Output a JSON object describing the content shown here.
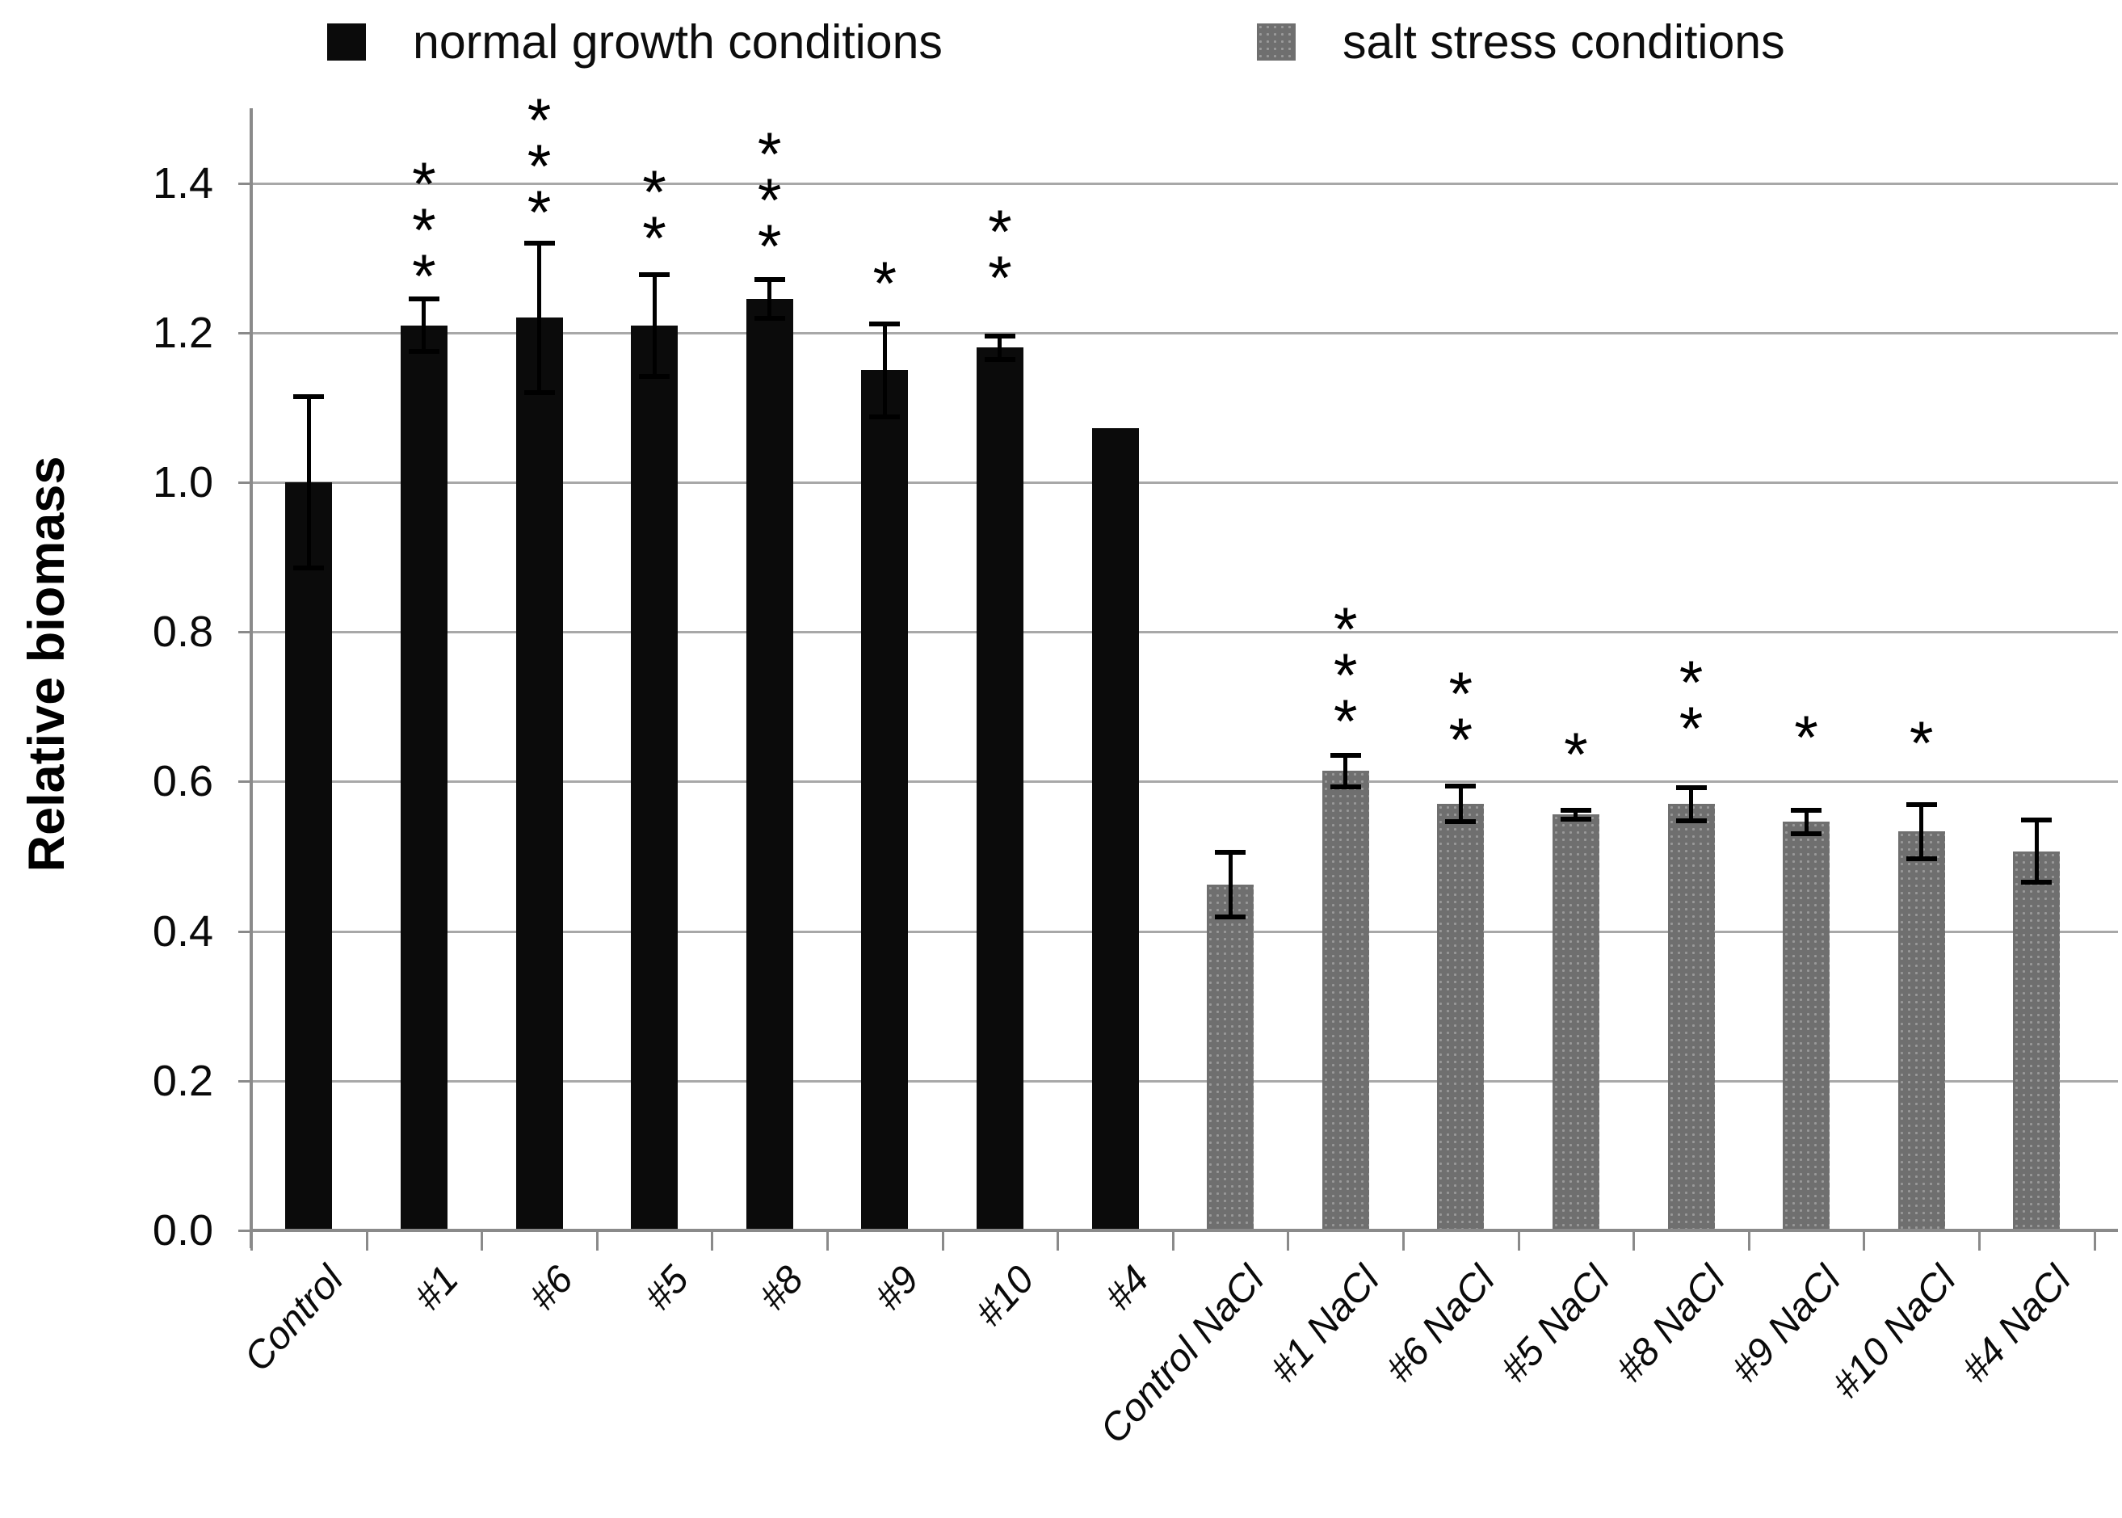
{
  "chart_data": {
    "type": "bar",
    "title": "",
    "xlabel": "",
    "ylabel": "Relative biomass",
    "ylim": [
      0,
      1.5
    ],
    "ytick_step": 0.2,
    "ytick_labels": [
      "0.0",
      "0.2",
      "0.4",
      "0.6",
      "0.8",
      "1.0",
      "1.2",
      "1.4"
    ],
    "grid": "horizontal gray gridlines every 0.2, full plot width",
    "legend_position": "top",
    "legend": [
      {
        "label": "normal growth conditions",
        "group": "normal",
        "color": "#0b0b0b"
      },
      {
        "label": "salt stress conditions",
        "group": "salt",
        "color": "#6f6f6f"
      }
    ],
    "bars": [
      {
        "label": "Control",
        "group": "normal",
        "value": 1.0,
        "error": 0.115,
        "stars": "",
        "stars_y": null
      },
      {
        "label": "#1",
        "group": "normal",
        "value": 1.21,
        "error": 0.035,
        "stars": "***",
        "stars_y": 1.265
      },
      {
        "label": "#6",
        "group": "normal",
        "value": 1.22,
        "error": 0.1,
        "stars": "***",
        "stars_y": 1.35
      },
      {
        "label": "#5",
        "group": "normal",
        "value": 1.21,
        "error": 0.068,
        "stars": "**",
        "stars_y": 1.315
      },
      {
        "label": "#8",
        "group": "normal",
        "value": 1.245,
        "error": 0.026,
        "stars": "***",
        "stars_y": 1.305
      },
      {
        "label": "#9",
        "group": "normal",
        "value": 1.15,
        "error": 0.062,
        "stars": "*",
        "stars_y": 1.255
      },
      {
        "label": "#10",
        "group": "normal",
        "value": 1.18,
        "error": 0.016,
        "stars": "**",
        "stars_y": 1.262
      },
      {
        "label": "#4",
        "group": "normal",
        "value": 1.072,
        "error": null,
        "stars": "",
        "stars_y": null
      },
      {
        "label": "Control NaCl",
        "group": "salt",
        "value": 0.462,
        "error": 0.043,
        "stars": "",
        "stars_y": null
      },
      {
        "label": "#1 NaCl",
        "group": "salt",
        "value": 0.614,
        "error": 0.021,
        "stars": "***",
        "stars_y": 0.67
      },
      {
        "label": "#6 NaCl",
        "group": "salt",
        "value": 0.57,
        "error": 0.024,
        "stars": "**",
        "stars_y": 0.645
      },
      {
        "label": "#5 NaCl",
        "group": "salt",
        "value": 0.556,
        "error": 0.006,
        "stars": "*",
        "stars_y": 0.625
      },
      {
        "label": "#8 NaCl",
        "group": "salt",
        "value": 0.57,
        "error": 0.022,
        "stars": "**",
        "stars_y": 0.66
      },
      {
        "label": "#9 NaCl",
        "group": "salt",
        "value": 0.546,
        "error": 0.016,
        "stars": "*",
        "stars_y": 0.648
      },
      {
        "label": "#10 NaCl",
        "group": "salt",
        "value": 0.533,
        "error": 0.036,
        "stars": "*",
        "stars_y": 0.64
      },
      {
        "label": "#4 NaCl",
        "group": "salt",
        "value": 0.507,
        "error": 0.042,
        "stars": "",
        "stars_y": null
      }
    ],
    "colors": {
      "normal_bar": "#0b0b0b",
      "salt_bar": "#6f6f6f",
      "salt_bar_dots": "#999999",
      "gridline": "#a8a8a8",
      "axis": "#8a8a8a",
      "error_bar": "#000000",
      "text": "#0a0a0a"
    }
  }
}
